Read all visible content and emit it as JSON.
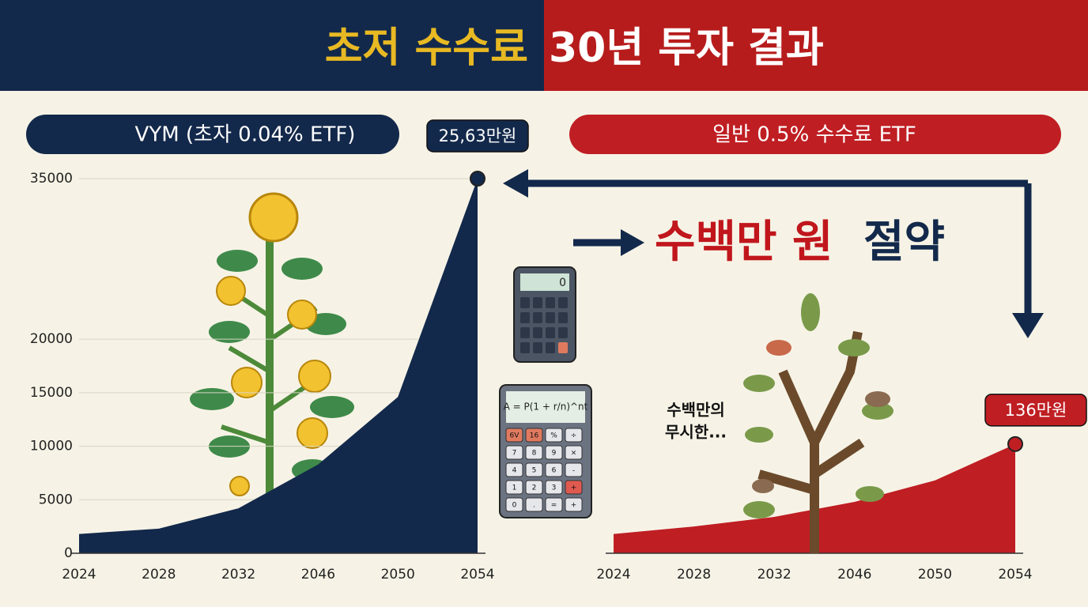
{
  "header": {
    "title_left": "초저 수수료",
    "title_right": "30년 투자 결과"
  },
  "chart_data": [
    {
      "type": "area",
      "title": "VYM (초자 0.04% ETF)",
      "color": "#13294b",
      "categories": [
        "2024",
        "2028",
        "2032",
        "2046",
        "2050",
        "2054"
      ],
      "values": [
        1800,
        2300,
        4200,
        8300,
        14600,
        35000
      ],
      "ylim": [
        0,
        35000
      ],
      "yticks": [
        0,
        5000,
        10000,
        15000,
        20000,
        35000
      ],
      "grid": true,
      "annotation": "25,63만원"
    },
    {
      "type": "area",
      "title": "일반 0.5% 수수료 ETF",
      "color": "#bf1e23",
      "categories": [
        "2024",
        "2028",
        "2032",
        "2046",
        "2050",
        "2054"
      ],
      "values": [
        1800,
        2500,
        3400,
        4800,
        6800,
        10200
      ],
      "ylim": [
        0,
        35000
      ],
      "annotation": "136만원"
    }
  ],
  "savings": {
    "emphasis": "수백만 원",
    "rest": "절약"
  },
  "note": [
    "수백만의",
    "무시한..."
  ],
  "calculator_display": "0",
  "formula": "A = P(1 + r/n)^nt",
  "keypad": [
    "6V",
    "16",
    "%",
    "÷",
    "7",
    "8",
    "9",
    "×",
    "4",
    "5",
    "6",
    "-",
    "1",
    "2",
    "3",
    "+",
    "0",
    ".",
    "=",
    "+"
  ]
}
